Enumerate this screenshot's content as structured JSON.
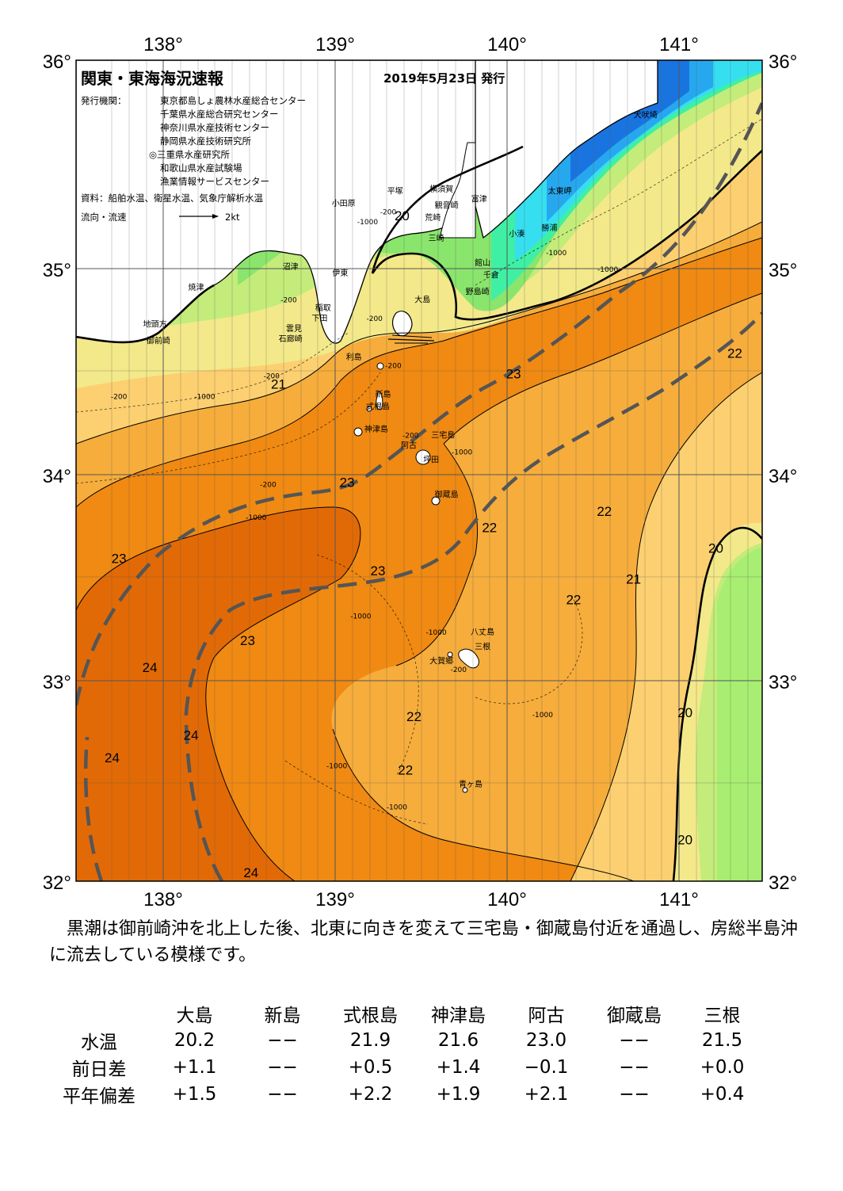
{
  "map": {
    "title": "関東・東海海況速報",
    "date_issued": "2019年5月23日 発行",
    "issuers_label": "発行機関：",
    "issuers": [
      "東京都島しょ農林水産総合センター",
      "千葉県水産総合研究センター",
      "神奈川県水産技術センター",
      "静岡県水産技術研究所",
      "◎三重県水産研究所",
      "和歌山県水産試験場",
      "漁業情報サービスセンター"
    ],
    "sources": "資料：船舶水温、衛星水温、気象庁解析水温",
    "legend_current": "流向・流速",
    "legend_speed": "2kt",
    "longitude_labels": [
      "138°",
      "139°",
      "140°",
      "141°"
    ],
    "latitude_labels": [
      "36°",
      "35°",
      "34°",
      "33°",
      "32°"
    ],
    "isotherm_labels": [
      {
        "text": "20",
        "lon": 139.4,
        "lat": 35.22
      },
      {
        "text": "20",
        "lon": 141.23,
        "lat": 33.6
      },
      {
        "text": "20",
        "lon": 141.05,
        "lat": 32.8
      },
      {
        "text": "20",
        "lon": 141.05,
        "lat": 32.18
      },
      {
        "text": "21",
        "lon": 138.68,
        "lat": 34.4
      },
      {
        "text": "21",
        "lon": 140.75,
        "lat": 33.45
      },
      {
        "text": "22",
        "lon": 141.34,
        "lat": 34.55
      },
      {
        "text": "22",
        "lon": 140.58,
        "lat": 33.78
      },
      {
        "text": "22",
        "lon": 139.91,
        "lat": 33.7
      },
      {
        "text": "22",
        "lon": 140.4,
        "lat": 33.35
      },
      {
        "text": "22",
        "lon": 139.47,
        "lat": 32.78
      },
      {
        "text": "22",
        "lon": 139.42,
        "lat": 32.52
      },
      {
        "text": "23",
        "lon": 140.05,
        "lat": 34.45
      },
      {
        "text": "23",
        "lon": 139.08,
        "lat": 33.92
      },
      {
        "text": "23",
        "lon": 137.75,
        "lat": 33.55
      },
      {
        "text": "23",
        "lon": 139.26,
        "lat": 33.49
      },
      {
        "text": "23",
        "lon": 138.5,
        "lat": 33.15
      },
      {
        "text": "24",
        "lon": 137.93,
        "lat": 33.02
      },
      {
        "text": "24",
        "lon": 138.17,
        "lat": 32.69
      },
      {
        "text": "24",
        "lon": 137.71,
        "lat": 32.58
      },
      {
        "text": "24",
        "lon": 138.52,
        "lat": 32.02
      }
    ],
    "place_names": [
      {
        "text": "犬吠埼",
        "lon": 140.82,
        "lat": 35.72
      },
      {
        "text": "太東岬",
        "lon": 140.32,
        "lat": 35.35
      },
      {
        "text": "勝浦",
        "lon": 140.26,
        "lat": 35.17
      },
      {
        "text": "小湊",
        "lon": 140.07,
        "lat": 35.14
      },
      {
        "text": "富津",
        "lon": 139.85,
        "lat": 35.31
      },
      {
        "text": "横須賀",
        "lon": 139.63,
        "lat": 35.36
      },
      {
        "text": "平塚",
        "lon": 139.36,
        "lat": 35.35
      },
      {
        "text": "小田原",
        "lon": 139.06,
        "lat": 35.29
      },
      {
        "text": "観音崎",
        "lon": 139.66,
        "lat": 35.28
      },
      {
        "text": "荒崎",
        "lon": 139.58,
        "lat": 35.22
      },
      {
        "text": "三崎",
        "lon": 139.6,
        "lat": 35.12
      },
      {
        "text": "館山",
        "lon": 139.87,
        "lat": 35.0
      },
      {
        "text": "千倉",
        "lon": 139.92,
        "lat": 34.94
      },
      {
        "text": "野島崎",
        "lon": 139.84,
        "lat": 34.86
      },
      {
        "text": "大島",
        "lon": 139.52,
        "lat": 34.82
      },
      {
        "text": "沼津",
        "lon": 138.75,
        "lat": 34.98
      },
      {
        "text": "伊東",
        "lon": 139.04,
        "lat": 34.95
      },
      {
        "text": "焼津",
        "lon": 138.2,
        "lat": 34.88
      },
      {
        "text": "稲取",
        "lon": 138.94,
        "lat": 34.78
      },
      {
        "text": "下田",
        "lon": 138.92,
        "lat": 34.73
      },
      {
        "text": "雲見",
        "lon": 138.77,
        "lat": 34.68
      },
      {
        "text": "石廊崎",
        "lon": 138.75,
        "lat": 34.63
      },
      {
        "text": "地頭方",
        "lon": 137.96,
        "lat": 34.7
      },
      {
        "text": "御前崎",
        "lon": 137.98,
        "lat": 34.62
      },
      {
        "text": "利島",
        "lon": 139.12,
        "lat": 34.54
      },
      {
        "text": "新島",
        "lon": 139.29,
        "lat": 34.36
      },
      {
        "text": "式根島",
        "lon": 139.26,
        "lat": 34.3
      },
      {
        "text": "神津島",
        "lon": 139.25,
        "lat": 34.19
      },
      {
        "text": "三宅島",
        "lon": 139.64,
        "lat": 34.16
      },
      {
        "text": "阿古",
        "lon": 139.44,
        "lat": 34.11
      },
      {
        "text": "坪田",
        "lon": 139.57,
        "lat": 34.04
      },
      {
        "text": "御蔵島",
        "lon": 139.66,
        "lat": 33.87
      },
      {
        "text": "八丈島",
        "lon": 139.87,
        "lat": 33.2
      },
      {
        "text": "三根",
        "lon": 139.87,
        "lat": 33.13
      },
      {
        "text": "大賀郷",
        "lon": 139.63,
        "lat": 33.06
      },
      {
        "text": "青ヶ島",
        "lon": 139.8,
        "lat": 32.46
      }
    ],
    "depth_labels": [
      {
        "text": "-200",
        "lon": 139.32,
        "lat": 35.25
      },
      {
        "text": "-1000",
        "lon": 139.2,
        "lat": 35.2
      },
      {
        "text": "-200",
        "lon": 138.74,
        "lat": 34.82
      },
      {
        "text": "-200",
        "lon": 139.24,
        "lat": 34.73
      },
      {
        "text": "-1000",
        "lon": 140.3,
        "lat": 35.05
      },
      {
        "text": "-1000",
        "lon": 140.6,
        "lat": 34.97
      },
      {
        "text": "-200",
        "lon": 138.64,
        "lat": 34.45
      },
      {
        "text": "-200",
        "lon": 137.75,
        "lat": 34.35
      },
      {
        "text": "-1000",
        "lon": 138.25,
        "lat": 34.35
      },
      {
        "text": "-200",
        "lon": 139.35,
        "lat": 34.5
      },
      {
        "text": "-200",
        "lon": 139.45,
        "lat": 34.16
      },
      {
        "text": "-1000",
        "lon": 139.75,
        "lat": 34.08
      },
      {
        "text": "-200",
        "lon": 138.62,
        "lat": 33.92
      },
      {
        "text": "-1000",
        "lon": 138.55,
        "lat": 33.76
      },
      {
        "text": "-1000",
        "lon": 139.16,
        "lat": 33.28
      },
      {
        "text": "-1000",
        "lon": 139.6,
        "lat": 33.2
      },
      {
        "text": "-200",
        "lon": 139.73,
        "lat": 33.02
      },
      {
        "text": "-1000",
        "lon": 140.22,
        "lat": 32.8
      },
      {
        "text": "-1000",
        "lon": 139.02,
        "lat": 32.55
      },
      {
        "text": "-1000",
        "lon": 139.37,
        "lat": 32.35
      }
    ],
    "colors": {
      "t24": "#e26a06",
      "t23": "#f08a12",
      "t22": "#f6ad3c",
      "t21": "#fcd070",
      "t20": "#f3e98a",
      "t19": "#c3ec7a",
      "t18": "#8ae56c",
      "coastal_cool_1": "#3ff0a4",
      "coastal_cool_2": "#36dff0",
      "coastal_cool_3": "#27a8ee",
      "coastal_cool_4": "#1974e0",
      "land": "#ffffff",
      "kuroshio_axis": "#505050"
    }
  },
  "summary": "黒潮は御前崎沖を北上した後、北東に向きを変えて三宅島・御蔵島付近を通過し、房総半島沖に流去している模様です。",
  "table": {
    "stations": [
      "大島",
      "新島",
      "式根島",
      "神津島",
      "阿古",
      "御蔵島",
      "三根"
    ],
    "rows": [
      {
        "label": "水温",
        "values": [
          "20.2",
          "−−",
          "21.9",
          "21.6",
          "23.0",
          "−−",
          "21.5"
        ]
      },
      {
        "label": "前日差",
        "values": [
          "+1.1",
          "−−",
          "+0.5",
          "+1.4",
          "−0.1",
          "−−",
          "+0.0"
        ]
      },
      {
        "label": "平年偏差",
        "values": [
          "+1.5",
          "−−",
          "+2.2",
          "+1.9",
          "+2.1",
          "−−",
          "+0.4"
        ]
      }
    ]
  }
}
